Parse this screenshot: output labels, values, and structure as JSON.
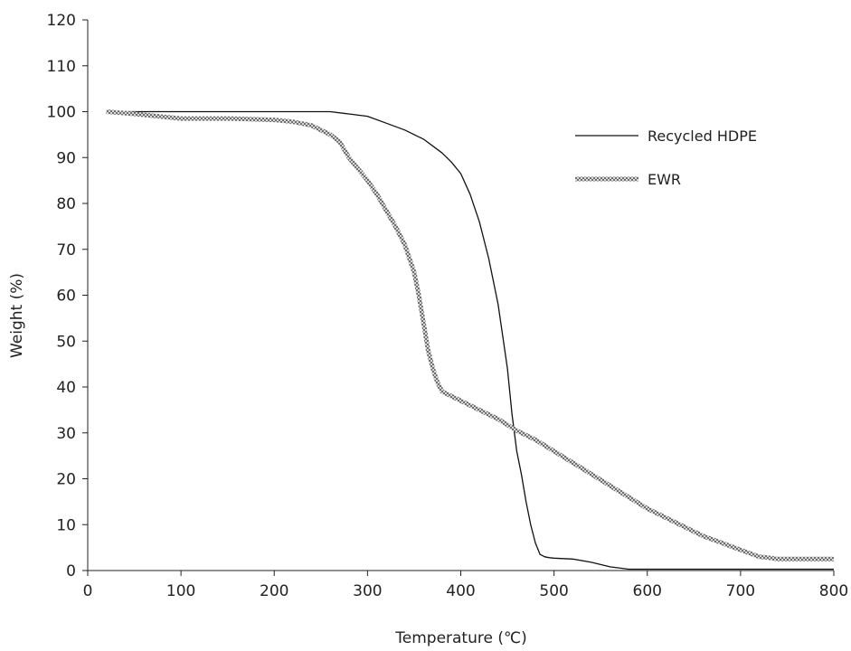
{
  "chart_data": {
    "type": "line",
    "xlabel": "Temperature (℃)",
    "ylabel": "Weight (%)",
    "xlim": [
      0,
      800
    ],
    "ylim": [
      0,
      120
    ],
    "xticks": [
      0,
      100,
      200,
      300,
      400,
      500,
      600,
      700,
      800
    ],
    "yticks": [
      0,
      10,
      20,
      30,
      40,
      50,
      60,
      70,
      80,
      90,
      100,
      110,
      120
    ],
    "grid": false,
    "legend_position": "top-right",
    "series": [
      {
        "name": "Recycled HDPE",
        "color": "#111111",
        "style": "solid",
        "x": [
          20,
          100,
          200,
          260,
          280,
          300,
          320,
          340,
          360,
          380,
          390,
          400,
          410,
          420,
          430,
          440,
          450,
          455,
          460,
          465,
          470,
          475,
          480,
          485,
          490,
          495,
          500,
          520,
          540,
          560,
          580,
          600,
          700,
          800
        ],
        "y": [
          100,
          100,
          100,
          100,
          99.5,
          99,
          97.5,
          96,
          94,
          91,
          89,
          86.5,
          82,
          76,
          68,
          58,
          44,
          34,
          26,
          21,
          15,
          10,
          6,
          3.5,
          3,
          2.8,
          2.7,
          2.5,
          1.8,
          0.8,
          0.3,
          0.3,
          0.3,
          0.3
        ]
      },
      {
        "name": "EWR",
        "color": "#9a9a9a",
        "style": "hatched",
        "x": [
          20,
          50,
          100,
          150,
          200,
          220,
          240,
          260,
          270,
          280,
          290,
          300,
          310,
          320,
          330,
          340,
          350,
          355,
          360,
          365,
          370,
          375,
          380,
          400,
          420,
          440,
          460,
          480,
          500,
          520,
          540,
          560,
          580,
          600,
          620,
          640,
          660,
          680,
          700,
          720,
          730,
          740,
          760,
          800
        ],
        "y": [
          100,
          99.5,
          98.5,
          98.5,
          98.2,
          97.8,
          97,
          95,
          93.5,
          90,
          87.5,
          85,
          82,
          78.5,
          75,
          71,
          65,
          60,
          54,
          48,
          44,
          41,
          39,
          37,
          35,
          33,
          30.5,
          28.5,
          26,
          23.5,
          21,
          18.5,
          16,
          13.5,
          11.5,
          9.5,
          7.5,
          6,
          4.5,
          3,
          2.8,
          2.5,
          2.5,
          2.5
        ]
      }
    ]
  }
}
